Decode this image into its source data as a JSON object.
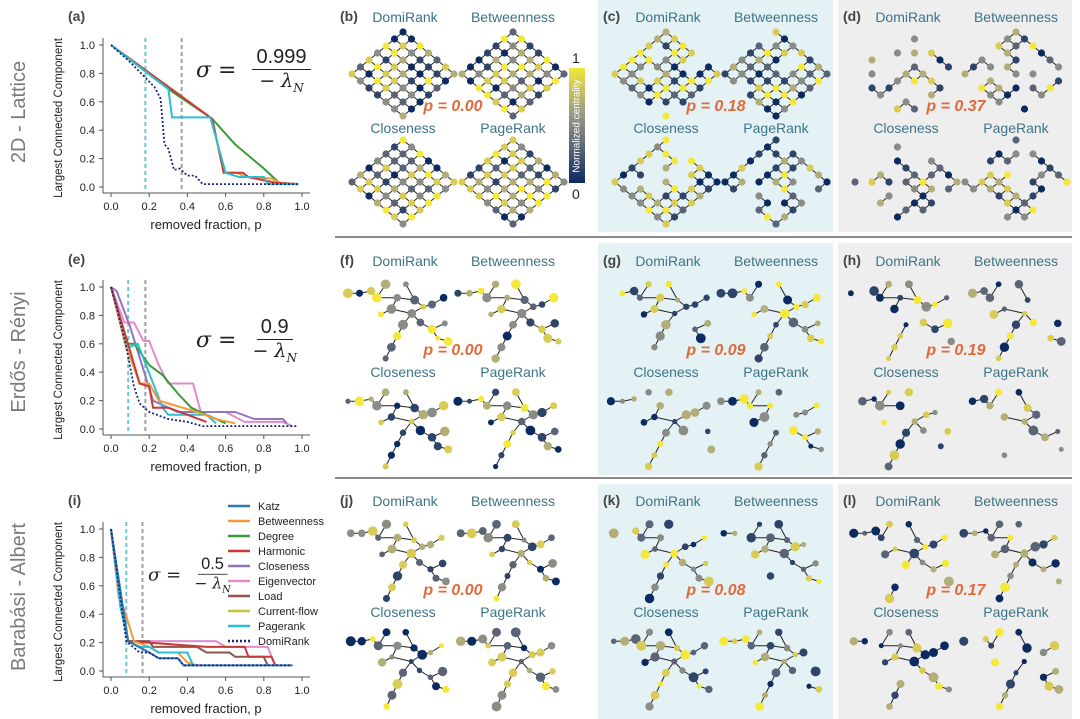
{
  "rows": [
    {
      "label": "2D - Lattice",
      "chart_letter": "(a)",
      "sigma_num": "0.999",
      "sigma_den": "− λ",
      "sigma_sub": "N",
      "panels": [
        {
          "letter": "(b)",
          "p": "p = 0.00",
          "labels": [
            "DomiRank",
            "Betweenness",
            "Closeness",
            "PageRank"
          ]
        },
        {
          "letter": "(c)",
          "p": "p = 0.18",
          "labels": [
            "DomiRank",
            "Betweenness",
            "Closeness",
            "PageRank"
          ]
        },
        {
          "letter": "(d)",
          "p": "p = 0.37",
          "labels": [
            "DomiRank",
            "Betweenness",
            "Closeness",
            "PageRank"
          ]
        }
      ]
    },
    {
      "label": "Erdős - Rényi",
      "chart_letter": "(e)",
      "sigma_num": "0.9",
      "sigma_den": "− λ",
      "sigma_sub": "N",
      "panels": [
        {
          "letter": "(f)",
          "p": "p = 0.00",
          "labels": [
            "DomiRank",
            "Betweenness",
            "Closeness",
            "PageRank"
          ]
        },
        {
          "letter": "(g)",
          "p": "p = 0.09",
          "labels": [
            "DomiRank",
            "Betweenness",
            "Closeness",
            "PageRank"
          ]
        },
        {
          "letter": "(h)",
          "p": "p = 0.19",
          "labels": [
            "DomiRank",
            "Betweenness",
            "Closeness",
            "PageRank"
          ]
        }
      ]
    },
    {
      "label": "Barabási - Albert",
      "chart_letter": "(i)",
      "sigma_num": "0.5",
      "sigma_den": "− λ",
      "sigma_sub": "N",
      "panels": [
        {
          "letter": "(j)",
          "p": "p = 0.00",
          "labels": [
            "DomiRank",
            "Betweenness",
            "Closeness",
            "PageRank"
          ]
        },
        {
          "letter": "(k)",
          "p": "p = 0.08",
          "labels": [
            "DomiRank",
            "Betweenness",
            "Closeness",
            "PageRank"
          ]
        },
        {
          "letter": "(l)",
          "p": "p = 0.17",
          "labels": [
            "DomiRank",
            "Betweenness",
            "Closeness",
            "PageRank"
          ]
        }
      ]
    }
  ],
  "colorbar": {
    "title": "Normalized centrality",
    "max": "1",
    "min": "0"
  },
  "legend": [
    {
      "name": "Katz",
      "color": "#2a78b5",
      "dash": false
    },
    {
      "name": "Betweenness",
      "color": "#f39b3a",
      "dash": false
    },
    {
      "name": "Degree",
      "color": "#3a9a3a",
      "dash": false
    },
    {
      "name": "Harmonic",
      "color": "#c83a3a",
      "dash": false
    },
    {
      "name": "Closeness",
      "color": "#9573bd",
      "dash": false
    },
    {
      "name": "Eigenvector",
      "color": "#e08ccc",
      "dash": false
    },
    {
      "name": "Load",
      "color": "#8c564b",
      "dash": false
    },
    {
      "name": "Current-flow",
      "color": "#c2c43a",
      "dash": false
    },
    {
      "name": "Pagerank",
      "color": "#2bbfcf",
      "dash": false
    },
    {
      "name": "DomiRank",
      "color": "#1a237e",
      "dash": true
    }
  ],
  "chart_data": [
    {
      "type": "line",
      "panel": "(a)",
      "xlabel": "removed fraction, p",
      "ylabel": "Largest Connected Component",
      "xlim": [
        0,
        1
      ],
      "ylim": [
        0,
        1
      ],
      "xticks": [
        "0.0",
        "0.2",
        "0.4",
        "0.6",
        "0.8",
        "1.0"
      ],
      "yticks": [
        "0.0",
        "0.2",
        "0.4",
        "0.6",
        "0.8",
        "1.0"
      ],
      "vlines": [
        {
          "x": 0.18,
          "color": "#6cc7d4"
        },
        {
          "x": 0.37,
          "color": "#a0a0a0"
        }
      ],
      "series": [
        {
          "name": "Degree",
          "x": [
            0,
            0.3,
            0.53,
            0.65,
            0.8,
            0.88,
            0.98
          ],
          "y": [
            1,
            0.69,
            0.48,
            0.3,
            0.13,
            0.03,
            0.02
          ]
        },
        {
          "name": "Betweenness",
          "x": [
            0,
            0.53,
            0.59,
            0.66,
            0.7,
            0.84,
            0.9,
            0.98
          ],
          "y": [
            1,
            0.48,
            0.1,
            0.1,
            0.07,
            0.06,
            0.02,
            0.02
          ]
        },
        {
          "name": "Harmonic",
          "x": [
            0,
            0.53,
            0.59,
            0.69,
            0.72,
            0.86,
            0.98
          ],
          "y": [
            1,
            0.48,
            0.1,
            0.1,
            0.07,
            0.03,
            0.02
          ]
        },
        {
          "name": "Pagerank",
          "x": [
            0,
            0.3,
            0.32,
            0.52,
            0.6,
            0.67,
            0.8,
            0.82,
            0.98
          ],
          "y": [
            1,
            0.69,
            0.49,
            0.49,
            0.1,
            0.07,
            0.07,
            0.02,
            0.02
          ]
        },
        {
          "name": "DomiRank",
          "x": [
            0,
            0.1,
            0.18,
            0.23,
            0.26,
            0.28,
            0.3,
            0.33,
            0.36,
            0.4,
            0.44,
            0.48,
            0.98
          ],
          "y": [
            1,
            0.88,
            0.77,
            0.7,
            0.62,
            0.3,
            0.27,
            0.12,
            0.13,
            0.08,
            0.08,
            0.02,
            0.02
          ]
        }
      ]
    },
    {
      "type": "line",
      "panel": "(e)",
      "xlabel": "removed fraction, p",
      "ylabel": "Largest Connected Component",
      "xlim": [
        0,
        1
      ],
      "ylim": [
        0,
        1
      ],
      "xticks": [
        "0.0",
        "0.2",
        "0.4",
        "0.6",
        "0.8",
        "1.0"
      ],
      "yticks": [
        "0.0",
        "0.2",
        "0.4",
        "0.6",
        "0.8",
        "1.0"
      ],
      "vlines": [
        {
          "x": 0.09,
          "color": "#6cc7d4"
        },
        {
          "x": 0.18,
          "color": "#a0a0a0"
        }
      ],
      "series": [
        {
          "name": "Eigenvector",
          "x": [
            0,
            0.07,
            0.12,
            0.17,
            0.2,
            0.25,
            0.3,
            0.43,
            0.47,
            0.6,
            0.7,
            0.9,
            0.95
          ],
          "y": [
            1,
            0.75,
            0.75,
            0.62,
            0.62,
            0.45,
            0.32,
            0.32,
            0.12,
            0.12,
            0.05,
            0.05,
            0.02
          ]
        },
        {
          "name": "Closeness",
          "x": [
            0,
            0.03,
            0.1,
            0.22,
            0.35,
            0.65,
            0.75,
            0.9,
            0.92
          ],
          "y": [
            1,
            0.97,
            0.72,
            0.2,
            0.12,
            0.12,
            0.07,
            0.07,
            0.04
          ]
        },
        {
          "name": "Degree",
          "x": [
            0,
            0.08,
            0.12,
            0.2,
            0.27,
            0.35,
            0.42,
            0.5,
            0.6
          ],
          "y": [
            1,
            0.6,
            0.6,
            0.45,
            0.38,
            0.25,
            0.15,
            0.1,
            0.04
          ]
        },
        {
          "name": "Pagerank",
          "x": [
            0,
            0.08,
            0.14,
            0.27,
            0.3,
            0.5,
            0.55
          ],
          "y": [
            1,
            0.57,
            0.6,
            0.15,
            0.1,
            0.1,
            0.04
          ]
        },
        {
          "name": "Betweenness",
          "x": [
            0,
            0.08,
            0.15,
            0.2,
            0.25,
            0.45,
            0.55,
            0.65
          ],
          "y": [
            1,
            0.58,
            0.32,
            0.32,
            0.2,
            0.12,
            0.07,
            0.04
          ]
        },
        {
          "name": "Harmonic",
          "x": [
            0,
            0.1,
            0.15,
            0.2,
            0.22,
            0.3,
            0.4,
            0.5
          ],
          "y": [
            1,
            0.55,
            0.32,
            0.3,
            0.15,
            0.15,
            0.1,
            0.05
          ]
        },
        {
          "name": "DomiRank",
          "x": [
            0,
            0.03,
            0.08,
            0.12,
            0.15,
            0.2,
            0.3,
            0.4,
            0.48,
            0.97
          ],
          "y": [
            1,
            0.85,
            0.58,
            0.3,
            0.18,
            0.12,
            0.07,
            0.05,
            0.02,
            0.02
          ]
        }
      ]
    },
    {
      "type": "line",
      "panel": "(i)",
      "xlabel": "removed fraction, p",
      "ylabel": "Largest Connected Component",
      "xlim": [
        0,
        1
      ],
      "ylim": [
        0,
        1
      ],
      "xticks": [
        "0.0",
        "0.2",
        "0.4",
        "0.6",
        "0.8",
        "1.0"
      ],
      "yticks": [
        "0.0",
        "0.2",
        "0.4",
        "0.6",
        "0.8",
        "1.0"
      ],
      "vlines": [
        {
          "x": 0.08,
          "color": "#6cc7d4"
        },
        {
          "x": 0.165,
          "color": "#a0a0a0"
        }
      ],
      "series": [
        {
          "name": "Eigenvector",
          "x": [
            0,
            0.05,
            0.09,
            0.55,
            0.6,
            0.82,
            0.86
          ],
          "y": [
            1,
            0.45,
            0.21,
            0.21,
            0.17,
            0.17,
            0.04
          ]
        },
        {
          "name": "Load",
          "x": [
            0,
            0.05,
            0.09,
            0.2,
            0.22,
            0.45,
            0.5,
            0.62,
            0.65,
            0.8,
            0.82
          ],
          "y": [
            1,
            0.45,
            0.21,
            0.21,
            0.17,
            0.17,
            0.13,
            0.13,
            0.1,
            0.1,
            0.04
          ]
        },
        {
          "name": "Harmonic",
          "x": [
            0,
            0.05,
            0.09,
            0.5,
            0.7,
            0.72,
            0.84,
            0.86
          ],
          "y": [
            1,
            0.45,
            0.21,
            0.17,
            0.17,
            0.1,
            0.1,
            0.04
          ]
        },
        {
          "name": "Betweenness",
          "x": [
            0,
            0.04,
            0.07,
            0.12,
            0.2,
            0.25,
            0.35,
            0.4,
            0.45
          ],
          "y": [
            1,
            0.52,
            0.43,
            0.21,
            0.17,
            0.13,
            0.13,
            0.06,
            0.04
          ]
        },
        {
          "name": "Pagerank",
          "x": [
            0,
            0.05,
            0.09,
            0.15,
            0.2,
            0.25,
            0.4,
            0.43
          ],
          "y": [
            1,
            0.45,
            0.21,
            0.17,
            0.17,
            0.13,
            0.13,
            0.04
          ]
        },
        {
          "name": "Katz",
          "x": [
            0,
            0.09,
            0.2,
            0.25,
            0.35,
            0.38,
            0.95
          ],
          "y": [
            1,
            0.21,
            0.13,
            0.09,
            0.09,
            0.04,
            0.04
          ]
        },
        {
          "name": "DomiRank",
          "x": [
            0,
            0.08,
            0.15,
            0.2,
            0.25,
            0.35,
            0.38,
            0.95
          ],
          "y": [
            1,
            0.21,
            0.13,
            0.13,
            0.09,
            0.09,
            0.04,
            0.04
          ]
        }
      ]
    }
  ]
}
